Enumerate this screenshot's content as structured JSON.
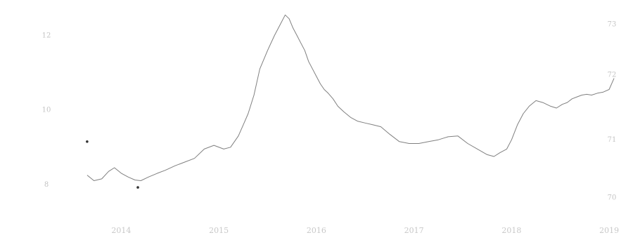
{
  "chart_data": {
    "type": "line",
    "title": "",
    "xlabel": "",
    "x_ticks": [
      "2014",
      "2015",
      "2016",
      "2017",
      "2018",
      "2019"
    ],
    "xlim": [
      2013.55,
      2019.1
    ],
    "left_axis": {
      "label": "",
      "ticks": [
        "12",
        "10",
        "8"
      ]
    },
    "right_axis": {
      "label": "",
      "ticks": [
        "73",
        "72",
        "71",
        "70"
      ]
    },
    "ylim": [
      7.3,
      12.5
    ],
    "grid": false,
    "series": [
      {
        "color": "#555555",
        "x": [
          2013.65,
          2013.72,
          2013.8,
          2013.87,
          2013.93,
          2014.0,
          2014.07,
          2014.14,
          2014.2,
          2014.28,
          2014.37,
          2014.45,
          2014.55,
          2014.65,
          2014.75,
          2014.85,
          2014.95,
          2015.05,
          2015.12,
          2015.2,
          2015.25,
          2015.3,
          2015.36,
          2015.42,
          2015.5,
          2015.57,
          2015.63,
          2015.68,
          2015.72,
          2015.76,
          2015.8,
          2015.84,
          2015.88,
          2015.92,
          2015.96,
          2016.0,
          2016.04,
          2016.08,
          2016.12,
          2016.17,
          2016.22,
          2016.28,
          2016.35,
          2016.42,
          2016.5,
          2016.58,
          2016.66,
          2016.75,
          2016.85,
          2016.95,
          2017.05,
          2017.15,
          2017.25,
          2017.35,
          2017.45,
          2017.55,
          2017.65,
          2017.75,
          2017.82,
          2017.88,
          2017.95,
          2018.0,
          2018.06,
          2018.12,
          2018.18,
          2018.25,
          2018.32,
          2018.4,
          2018.46,
          2018.52,
          2018.57,
          2018.62,
          2018.67,
          2018.72,
          2018.77,
          2018.82,
          2018.88,
          2018.94,
          2019.0,
          2019.05
        ],
        "y": [
          8.25,
          8.1,
          8.15,
          8.35,
          8.45,
          8.3,
          8.2,
          8.12,
          8.1,
          8.2,
          8.3,
          8.38,
          8.5,
          8.6,
          8.7,
          8.95,
          9.05,
          8.95,
          9.0,
          9.3,
          9.6,
          9.9,
          10.4,
          11.1,
          11.6,
          12.0,
          12.3,
          12.55,
          12.45,
          12.2,
          12.0,
          11.8,
          11.6,
          11.3,
          11.1,
          10.9,
          10.7,
          10.55,
          10.45,
          10.3,
          10.1,
          9.95,
          9.8,
          9.7,
          9.65,
          9.6,
          9.55,
          9.35,
          9.15,
          9.1,
          9.1,
          9.15,
          9.2,
          9.28,
          9.3,
          9.1,
          8.95,
          8.8,
          8.75,
          8.85,
          8.95,
          9.2,
          9.6,
          9.9,
          10.1,
          10.25,
          10.2,
          10.1,
          10.05,
          10.15,
          10.2,
          10.3,
          10.35,
          10.4,
          10.42,
          10.4,
          10.45,
          10.48,
          10.55,
          10.85
        ]
      }
    ],
    "markers": [
      {
        "x": 2013.65,
        "y": 9.15
      },
      {
        "x": 2014.17,
        "y": 7.92
      }
    ]
  }
}
